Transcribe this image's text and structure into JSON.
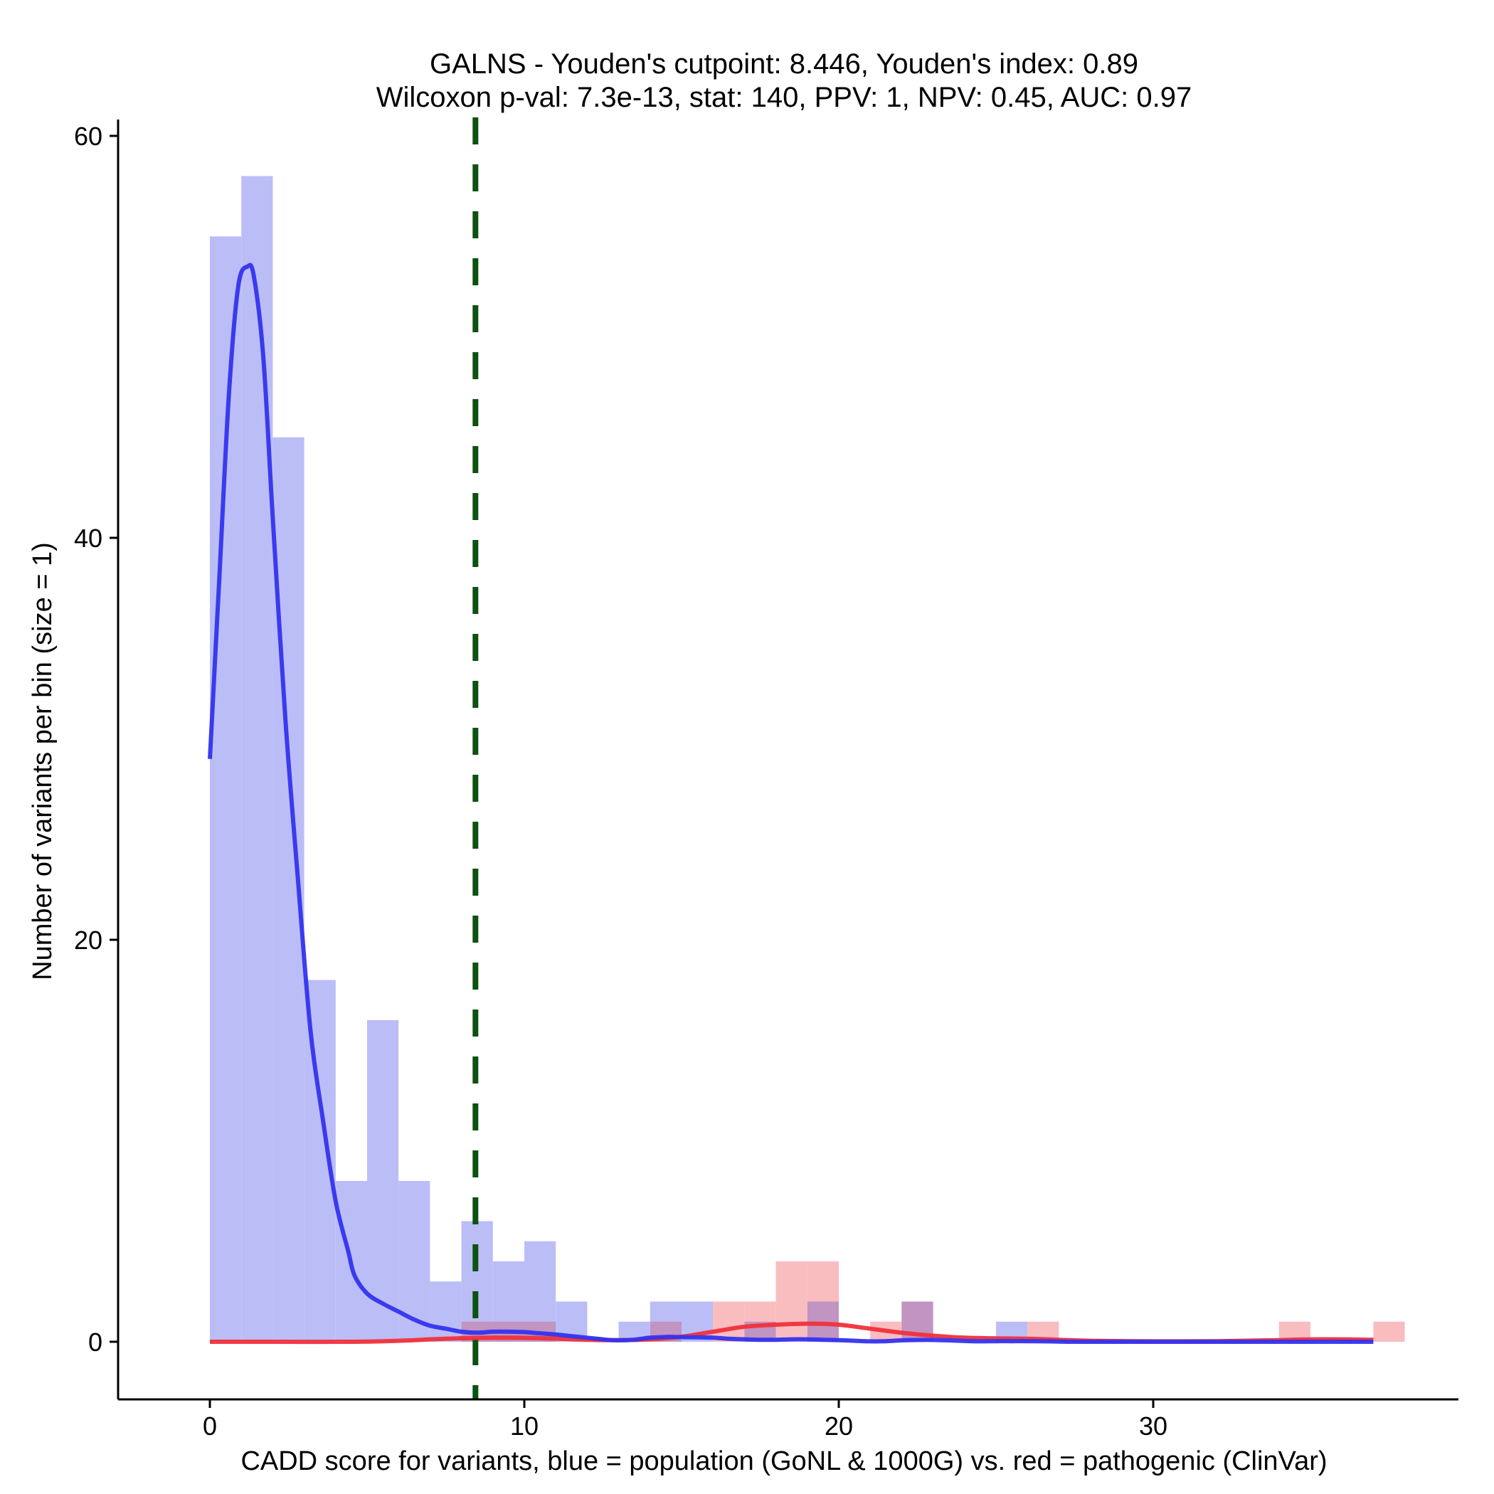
{
  "chart_data": {
    "type": "bar",
    "title_line1": "GALNS - Youden's cutpoint: 8.446, Youden's index: 0.89",
    "title_line2": "Wilcoxon p-val: 7.3e-13, stat: 140, PPV: 1, NPV: 0.45, AUC: 0.97",
    "xlabel": "CADD score for variants, blue = population (GoNL & 1000G) vs. red = pathogenic (ClinVar)",
    "ylabel": "Number of variants per bin (size = 1)",
    "xlim": [
      -3,
      40
    ],
    "ylim": [
      -3,
      61.5
    ],
    "xticks": [
      0,
      10,
      20,
      30
    ],
    "yticks": [
      0,
      20,
      40,
      60
    ],
    "bin_width": 1,
    "cutpoint": 8.446,
    "colors": {
      "population": "#3333ee",
      "pathogenic": "#f0303a",
      "population_fill": "#bbbdf7",
      "pathogenic_fill": "#f9bdc0",
      "overlap_fill": "#c194c1",
      "cutpoint": "#0c5210"
    },
    "series": [
      {
        "name": "population (GoNL & 1000G)",
        "bins": [
          {
            "x": 0,
            "count": 55
          },
          {
            "x": 1,
            "count": 58
          },
          {
            "x": 2,
            "count": 45
          },
          {
            "x": 3,
            "count": 18
          },
          {
            "x": 4,
            "count": 8
          },
          {
            "x": 5,
            "count": 16
          },
          {
            "x": 6,
            "count": 8
          },
          {
            "x": 7,
            "count": 3
          },
          {
            "x": 8,
            "count": 6
          },
          {
            "x": 9,
            "count": 4
          },
          {
            "x": 10,
            "count": 5
          },
          {
            "x": 11,
            "count": 2
          },
          {
            "x": 13,
            "count": 1
          },
          {
            "x": 14,
            "count": 2
          },
          {
            "x": 15,
            "count": 2
          },
          {
            "x": 17,
            "count": 1
          },
          {
            "x": 19,
            "count": 2
          },
          {
            "x": 22,
            "count": 2
          },
          {
            "x": 25,
            "count": 1
          }
        ],
        "density_x": [
          0,
          0.3,
          0.6,
          0.9,
          1.2,
          1.4,
          1.7,
          2.0,
          2.4,
          2.8,
          3.2,
          3.6,
          4.0,
          4.4,
          4.6,
          5.0,
          5.5,
          6.0,
          6.5,
          7.0,
          7.5,
          8.0,
          8.5,
          9.0,
          9.5,
          10.0,
          10.5,
          11.0,
          11.5,
          12.0,
          12.5,
          12.8,
          13.3,
          13.6,
          14.0,
          14.5,
          15.0,
          15.5,
          16.0,
          16.5,
          17.0,
          17.5,
          18.0,
          18.5,
          19.0,
          19.5,
          20.0,
          20.5,
          21.0,
          21.5,
          22.0,
          22.5,
          23.0,
          23.5,
          24.0,
          24.5,
          25.0,
          25.5,
          26.0,
          26.5,
          27.0,
          27.5,
          28.0,
          30.0,
          32.0,
          35.0,
          37.0
        ],
        "density_y": [
          29,
          38,
          47,
          52.5,
          53.5,
          53,
          49,
          41,
          31,
          23,
          15.5,
          11,
          7,
          4.5,
          3.3,
          2.4,
          1.9,
          1.5,
          1.1,
          0.8,
          0.65,
          0.5,
          0.45,
          0.5,
          0.5,
          0.48,
          0.42,
          0.36,
          0.28,
          0.2,
          0.12,
          0.08,
          0.08,
          0.12,
          0.2,
          0.24,
          0.23,
          0.22,
          0.2,
          0.15,
          0.12,
          0.1,
          0.1,
          0.12,
          0.12,
          0.1,
          0.08,
          0.05,
          0.02,
          0.03,
          0.07,
          0.09,
          0.09,
          0.07,
          0.04,
          0.02,
          0.03,
          0.03,
          0.03,
          0.02,
          0.01,
          0.0,
          0.0,
          0.0,
          0.0,
          0.0,
          0.0
        ]
      },
      {
        "name": "pathogenic (ClinVar)",
        "bins": [
          {
            "x": 8,
            "count": 1
          },
          {
            "x": 9,
            "count": 1
          },
          {
            "x": 10,
            "count": 1
          },
          {
            "x": 14,
            "count": 1
          },
          {
            "x": 16,
            "count": 2
          },
          {
            "x": 17,
            "count": 2
          },
          {
            "x": 18,
            "count": 4
          },
          {
            "x": 19,
            "count": 4
          },
          {
            "x": 21,
            "count": 1
          },
          {
            "x": 22,
            "count": 2
          },
          {
            "x": 26,
            "count": 1
          },
          {
            "x": 34,
            "count": 1
          },
          {
            "x": 37,
            "count": 1
          }
        ],
        "density_x": [
          0,
          2,
          4.5,
          6,
          7.5,
          9,
          10.5,
          12,
          13,
          14,
          15,
          16,
          17,
          18,
          19,
          20,
          21,
          22,
          23,
          24,
          25,
          26,
          27,
          28,
          30,
          32,
          34,
          35,
          36,
          37
        ],
        "density_y": [
          0,
          0,
          0,
          0.05,
          0.15,
          0.2,
          0.18,
          0.1,
          0.08,
          0.12,
          0.25,
          0.5,
          0.75,
          0.85,
          0.9,
          0.85,
          0.65,
          0.45,
          0.3,
          0.2,
          0.17,
          0.15,
          0.1,
          0.05,
          0.02,
          0.03,
          0.08,
          0.12,
          0.12,
          0.1
        ]
      }
    ]
  }
}
